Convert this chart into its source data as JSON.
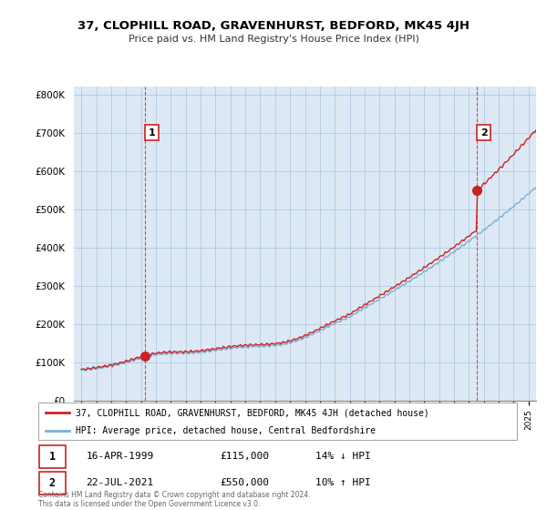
{
  "title": "37, CLOPHILL ROAD, GRAVENHURST, BEDFORD, MK45 4JH",
  "subtitle": "Price paid vs. HM Land Registry's House Price Index (HPI)",
  "ylabel_ticks": [
    "£0",
    "£100K",
    "£200K",
    "£300K",
    "£400K",
    "£500K",
    "£600K",
    "£700K",
    "£800K"
  ],
  "ytick_values": [
    0,
    100000,
    200000,
    300000,
    400000,
    500000,
    600000,
    700000,
    800000
  ],
  "ylim": [
    0,
    820000
  ],
  "sale1_date": 1999.29,
  "sale1_price": 115000,
  "sale2_date": 2021.55,
  "sale2_price": 550000,
  "hpi_line_color": "#7ab0d4",
  "price_line_color": "#cc2222",
  "legend_entry1": "37, CLOPHILL ROAD, GRAVENHURST, BEDFORD, MK45 4JH (detached house)",
  "legend_entry2": "HPI: Average price, detached house, Central Bedfordshire",
  "table_row1_num": "1",
  "table_row1_date": "16-APR-1999",
  "table_row1_price": "£115,000",
  "table_row1_hpi": "14% ↓ HPI",
  "table_row2_num": "2",
  "table_row2_date": "22-JUL-2021",
  "table_row2_price": "£550,000",
  "table_row2_hpi": "10% ↑ HPI",
  "footer": "Contains HM Land Registry data © Crown copyright and database right 2024.\nThis data is licensed under the Open Government Licence v3.0.",
  "xlim_start": 1994.5,
  "xlim_end": 2025.5,
  "bg_color": "#dce9f5",
  "grid_color": "#b0c8e0"
}
